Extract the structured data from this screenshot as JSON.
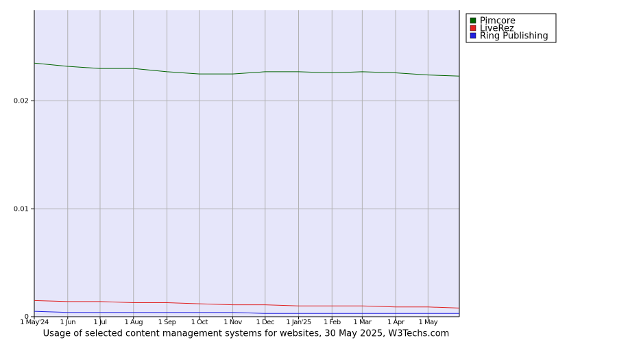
{
  "chart_data": {
    "type": "line",
    "title": "Usage of selected content management systems for websites, 30 May 2025, W3Techs.com",
    "x": [
      0,
      31,
      61,
      92,
      123,
      153,
      184,
      214,
      245,
      276,
      304,
      335,
      365,
      394
    ],
    "xlim": [
      0,
      394
    ],
    "xticks": [
      {
        "value": 0,
        "label": "1 May'24"
      },
      {
        "value": 31,
        "label": "1 Jun"
      },
      {
        "value": 61,
        "label": "1 Jul"
      },
      {
        "value": 92,
        "label": "1 Aug"
      },
      {
        "value": 123,
        "label": "1 Sep"
      },
      {
        "value": 153,
        "label": "1 Oct"
      },
      {
        "value": 184,
        "label": "1 Nov"
      },
      {
        "value": 214,
        "label": "1 Dec"
      },
      {
        "value": 245,
        "label": "1 Jan'25"
      },
      {
        "value": 276,
        "label": "1 Feb"
      },
      {
        "value": 304,
        "label": "1 Mar"
      },
      {
        "value": 335,
        "label": "1 Apr"
      },
      {
        "value": 365,
        "label": "1 May"
      }
    ],
    "ylim": [
      0,
      0.0284
    ],
    "yticks": [
      0,
      0.01,
      0.02
    ],
    "grid": true,
    "legend": "right",
    "series": [
      {
        "name": "Pimcore",
        "color": "#006400",
        "values": [
          0.0235,
          0.0232,
          0.023,
          0.023,
          0.0227,
          0.0225,
          0.0225,
          0.0227,
          0.0227,
          0.0226,
          0.0227,
          0.0226,
          0.0224,
          0.0223
        ]
      },
      {
        "name": "LiveRez",
        "color": "#e02020",
        "values": [
          0.0015,
          0.0014,
          0.0014,
          0.0013,
          0.0013,
          0.0012,
          0.0011,
          0.0011,
          0.001,
          0.001,
          0.001,
          0.0009,
          0.0009,
          0.0008
        ]
      },
      {
        "name": "Ring Publishing",
        "color": "#2020e0",
        "values": [
          0.0005,
          0.0004,
          0.0004,
          0.0004,
          0.0004,
          0.0004,
          0.0004,
          0.0003,
          0.0003,
          0.0003,
          0.0003,
          0.0003,
          0.0003,
          0.0003
        ]
      }
    ]
  }
}
